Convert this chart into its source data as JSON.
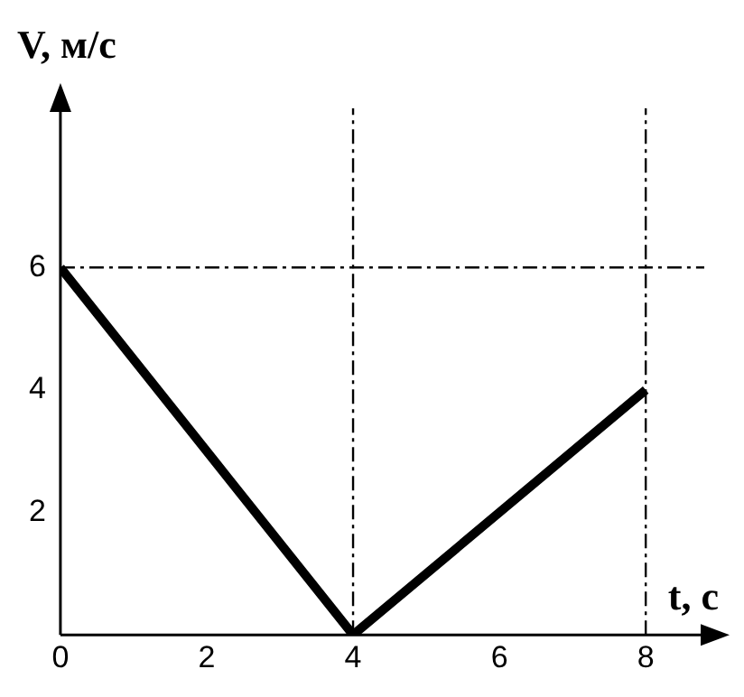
{
  "chart_data": {
    "type": "line",
    "xlabel": "t, c",
    "ylabel": "V, м/с",
    "x": [
      0,
      4,
      8
    ],
    "series": [
      {
        "color": "#000000",
        "values": [
          6,
          0,
          4
        ]
      }
    ],
    "xlim": [
      0,
      8.8
    ],
    "xticks": [
      0,
      2,
      4,
      6,
      8
    ],
    "ylim": [
      0,
      8.6
    ],
    "yticks": [
      2,
      4,
      6
    ],
    "ref_lines": [
      {
        "axis": "x",
        "value": 4,
        "line_style": "dashed",
        "color": "#000000"
      },
      {
        "axis": "x",
        "value": 8,
        "line_style": "dashed",
        "color": "#000000"
      },
      {
        "axis": "y",
        "value": 6,
        "line_style": "dashed",
        "color": "#000000"
      }
    ],
    "grid": false,
    "legend": false,
    "marker": "none",
    "line_style": "solid"
  }
}
